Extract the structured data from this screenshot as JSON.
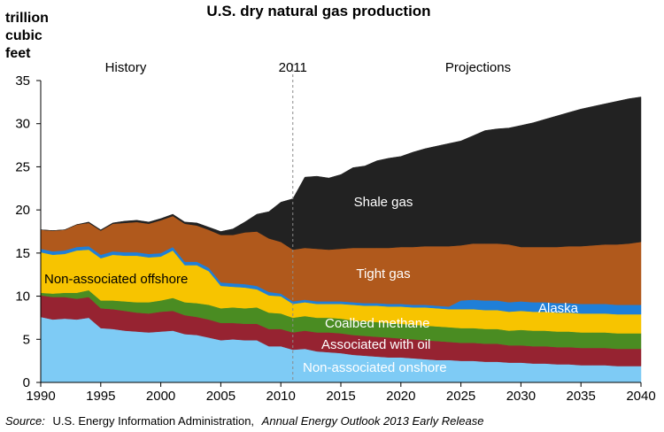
{
  "chart_data": {
    "type": "area",
    "stacked": true,
    "title": "U.S. dry natural gas production",
    "ylabel": "trillion cubic feet",
    "ylabel_lines": [
      "trillion",
      "cubic",
      "feet"
    ],
    "xlabel": "",
    "ylim": [
      0,
      35
    ],
    "xlim": [
      1990,
      2040
    ],
    "yticks": [
      0,
      5,
      10,
      15,
      20,
      25,
      30,
      35
    ],
    "xticks": [
      1990,
      1995,
      2000,
      2005,
      2010,
      2015,
      2020,
      2025,
      2030,
      2035,
      2040
    ],
    "annotations": {
      "history": "History",
      "divider": "2011",
      "projections": "Projections"
    },
    "x": [
      1990,
      1991,
      1992,
      1993,
      1994,
      1995,
      1996,
      1997,
      1998,
      1999,
      2000,
      2001,
      2002,
      2003,
      2004,
      2005,
      2006,
      2007,
      2008,
      2009,
      2010,
      2011,
      2012,
      2013,
      2014,
      2015,
      2016,
      2017,
      2018,
      2019,
      2020,
      2021,
      2022,
      2023,
      2024,
      2025,
      2026,
      2027,
      2028,
      2029,
      2030,
      2031,
      2032,
      2033,
      2034,
      2035,
      2036,
      2037,
      2038,
      2039,
      2040
    ],
    "series": [
      {
        "name": "Non-associated onshore",
        "color": "#7ecbf5",
        "label_color": "#ffffff",
        "values": [
          7.6,
          7.3,
          7.4,
          7.3,
          7.5,
          6.3,
          6.2,
          6.0,
          5.9,
          5.8,
          5.9,
          6.0,
          5.6,
          5.5,
          5.2,
          4.9,
          5.0,
          4.9,
          4.9,
          4.2,
          4.2,
          3.8,
          3.9,
          3.6,
          3.5,
          3.4,
          3.2,
          3.1,
          3.0,
          2.9,
          2.9,
          2.8,
          2.7,
          2.6,
          2.6,
          2.5,
          2.5,
          2.4,
          2.4,
          2.3,
          2.3,
          2.2,
          2.2,
          2.1,
          2.1,
          2.0,
          2.0,
          2.0,
          1.9,
          1.9,
          1.9
        ]
      },
      {
        "name": "Associated with oil",
        "color": "#962331",
        "label_color": "#ffffff",
        "values": [
          2.5,
          2.6,
          2.5,
          2.4,
          2.4,
          2.3,
          2.3,
          2.3,
          2.2,
          2.2,
          2.3,
          2.3,
          2.2,
          2.1,
          2.1,
          2.0,
          1.9,
          1.9,
          1.9,
          2.0,
          2.0,
          2.0,
          2.1,
          2.2,
          2.3,
          2.3,
          2.3,
          2.3,
          2.3,
          2.3,
          2.2,
          2.2,
          2.2,
          2.2,
          2.1,
          2.1,
          2.1,
          2.1,
          2.1,
          2.0,
          2.0,
          2.0,
          2.0,
          2.0,
          2.0,
          2.0,
          2.0,
          2.0,
          2.0,
          2.0,
          2.0
        ]
      },
      {
        "name": "Coalbed methane",
        "color": "#4a8c22",
        "label_color": "#ffffff",
        "values": [
          0.3,
          0.4,
          0.5,
          0.7,
          0.8,
          0.9,
          1.0,
          1.1,
          1.2,
          1.3,
          1.3,
          1.5,
          1.5,
          1.6,
          1.7,
          1.7,
          1.8,
          1.8,
          1.9,
          1.9,
          1.8,
          1.7,
          1.7,
          1.7,
          1.7,
          1.7,
          1.7,
          1.7,
          1.7,
          1.7,
          1.7,
          1.7,
          1.7,
          1.7,
          1.7,
          1.7,
          1.7,
          1.7,
          1.7,
          1.7,
          1.8,
          1.8,
          1.8,
          1.8,
          1.8,
          1.8,
          1.8,
          1.8,
          1.8,
          1.8,
          1.8
        ]
      },
      {
        "name": "Non-associated offshore",
        "color": "#f7c400",
        "label_color": "#000000",
        "values": [
          4.7,
          4.5,
          4.5,
          4.9,
          4.7,
          4.9,
          5.3,
          5.3,
          5.4,
          5.2,
          5.1,
          5.5,
          4.3,
          4.4,
          3.9,
          2.6,
          2.4,
          2.4,
          2.1,
          2.0,
          2.0,
          1.6,
          1.6,
          1.6,
          1.6,
          1.7,
          1.8,
          1.8,
          1.9,
          1.9,
          2.0,
          2.0,
          2.1,
          2.1,
          2.1,
          2.2,
          2.2,
          2.2,
          2.2,
          2.2,
          2.2,
          2.2,
          2.2,
          2.2,
          2.2,
          2.2,
          2.2,
          2.2,
          2.2,
          2.2,
          2.2
        ]
      },
      {
        "name": "Alaska",
        "color": "#1f7fd8",
        "label_color": "#ffffff",
        "values": [
          0.4,
          0.4,
          0.4,
          0.4,
          0.4,
          0.4,
          0.4,
          0.4,
          0.4,
          0.4,
          0.4,
          0.4,
          0.4,
          0.4,
          0.4,
          0.4,
          0.4,
          0.4,
          0.4,
          0.4,
          0.3,
          0.3,
          0.3,
          0.3,
          0.3,
          0.3,
          0.3,
          0.3,
          0.3,
          0.3,
          0.3,
          0.3,
          0.3,
          0.3,
          0.3,
          1.0,
          1.1,
          1.1,
          1.1,
          1.1,
          1.1,
          1.1,
          1.1,
          1.1,
          1.1,
          1.1,
          1.1,
          1.1,
          1.1,
          1.1,
          1.1
        ]
      },
      {
        "name": "Tight gas",
        "color": "#b0591c",
        "label_color": "#ffffff",
        "values": [
          2.2,
          2.4,
          2.4,
          2.6,
          2.7,
          2.8,
          3.2,
          3.4,
          3.5,
          3.5,
          3.8,
          3.6,
          4.4,
          4.2,
          4.4,
          5.5,
          5.6,
          6.0,
          6.3,
          6.2,
          6.0,
          6.0,
          6.0,
          6.1,
          6.0,
          6.1,
          6.3,
          6.4,
          6.4,
          6.5,
          6.6,
          6.7,
          6.8,
          6.9,
          7.0,
          6.4,
          6.5,
          6.6,
          6.6,
          6.7,
          6.3,
          6.4,
          6.4,
          6.5,
          6.6,
          6.7,
          6.8,
          6.9,
          7.0,
          7.1,
          7.3
        ]
      },
      {
        "name": "Shale gas",
        "color": "#222222",
        "label_color": "#ffffff",
        "values": [
          0.0,
          0.0,
          0.0,
          0.0,
          0.1,
          0.1,
          0.1,
          0.2,
          0.2,
          0.2,
          0.2,
          0.2,
          0.2,
          0.3,
          0.3,
          0.4,
          0.7,
          1.2,
          2.0,
          3.1,
          4.6,
          5.9,
          8.2,
          8.4,
          8.3,
          8.6,
          9.3,
          9.5,
          10.1,
          10.4,
          10.5,
          11.0,
          11.3,
          11.6,
          11.9,
          12.1,
          12.5,
          13.1,
          13.3,
          13.5,
          14.1,
          14.4,
          14.8,
          15.2,
          15.5,
          15.9,
          16.1,
          16.3,
          16.6,
          16.8,
          16.8
        ]
      }
    ],
    "series_labels": [
      "Non-associated onshore",
      "Associated with oil",
      "Coalbed methane",
      "Non-associated offshore",
      "Alaska",
      "Tight gas",
      "Shale gas"
    ],
    "source_label": "Source:",
    "source_text": "U.S. Energy Information Administration,",
    "source_italic": "Annual Energy Outlook 2013 Early Release"
  }
}
